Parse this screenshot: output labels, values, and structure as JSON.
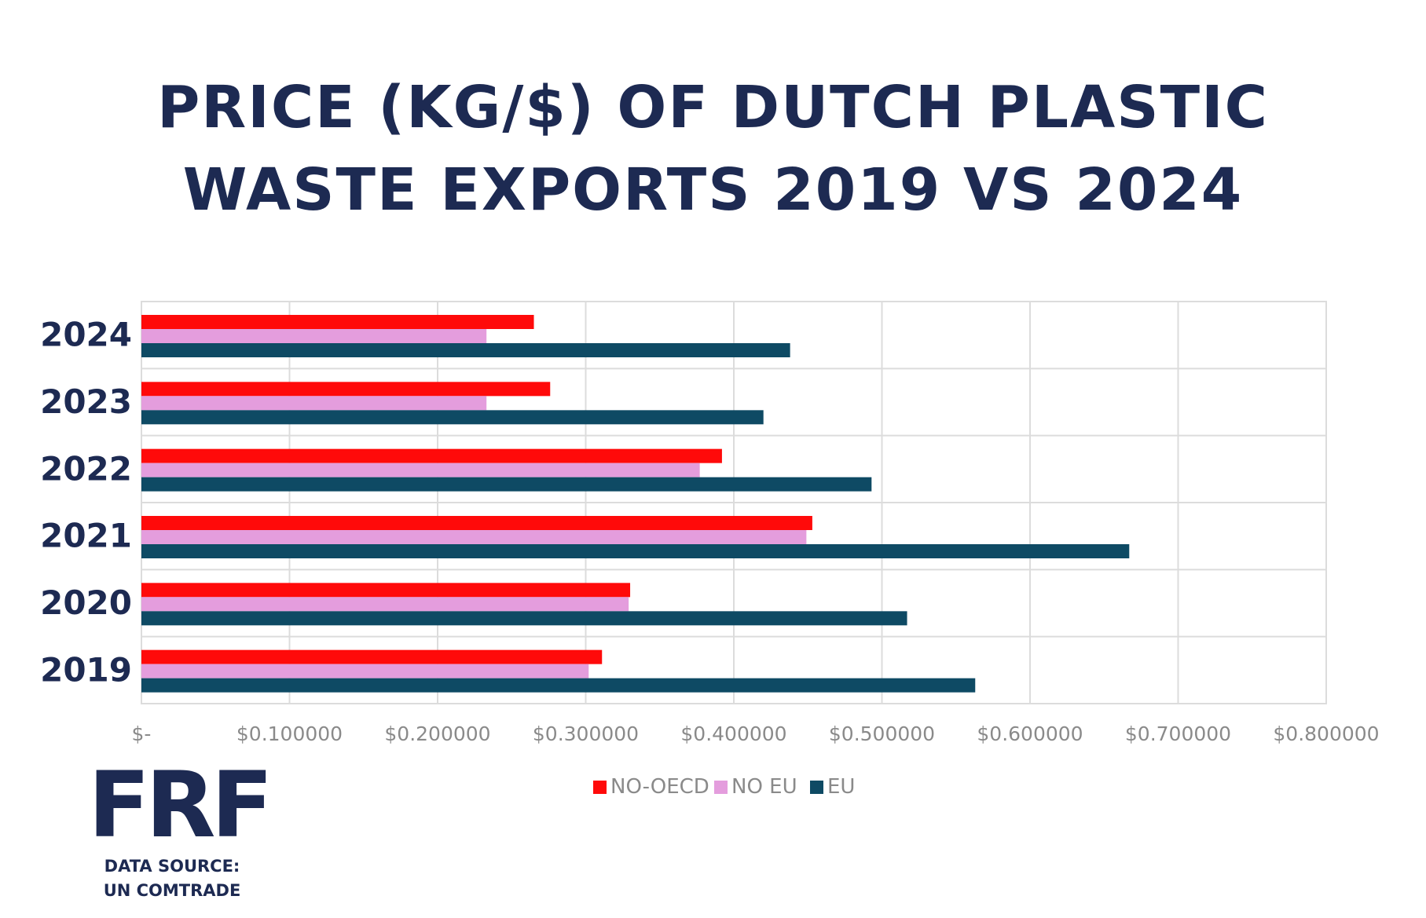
{
  "title_lines": [
    "PRICE (KG/$) OF DUTCH PLASTIC",
    "WASTE EXPORTS 2019 VS 2024"
  ],
  "logo_text": "FRF",
  "source_lines": [
    "DATA SOURCE:",
    "UN COMTRADE"
  ],
  "colors": {
    "no_oecd": "#ff0a0a",
    "no_eu": "#e49ddd",
    "eu": "#0e4a64",
    "title": "#1d2a52",
    "grid": "#dcdcdc",
    "tick_text": "#8a8a8a"
  },
  "chart_data": {
    "type": "bar",
    "orientation": "horizontal",
    "categories": [
      "2024",
      "2023",
      "2022",
      "2021",
      "2020",
      "2019"
    ],
    "series": [
      {
        "name": "NO-OECD",
        "values": [
          0.265,
          0.276,
          0.392,
          0.453,
          0.33,
          0.311
        ]
      },
      {
        "name": "NO EU",
        "values": [
          0.233,
          0.233,
          0.377,
          0.449,
          0.329,
          0.302
        ]
      },
      {
        "name": "EU",
        "values": [
          0.438,
          0.42,
          0.493,
          0.667,
          0.517,
          0.563
        ]
      }
    ],
    "xlim": [
      0,
      0.8
    ],
    "xticks": [
      0,
      0.1,
      0.2,
      0.3,
      0.4,
      0.5,
      0.6,
      0.7,
      0.8
    ],
    "xtick_labels": [
      "$-",
      "$0.100000",
      "$0.200000",
      "$0.300000",
      "$0.400000",
      "$0.500000",
      "$0.600000",
      "$0.700000",
      "$0.800000"
    ],
    "grid": true,
    "legend_position": "bottom"
  }
}
